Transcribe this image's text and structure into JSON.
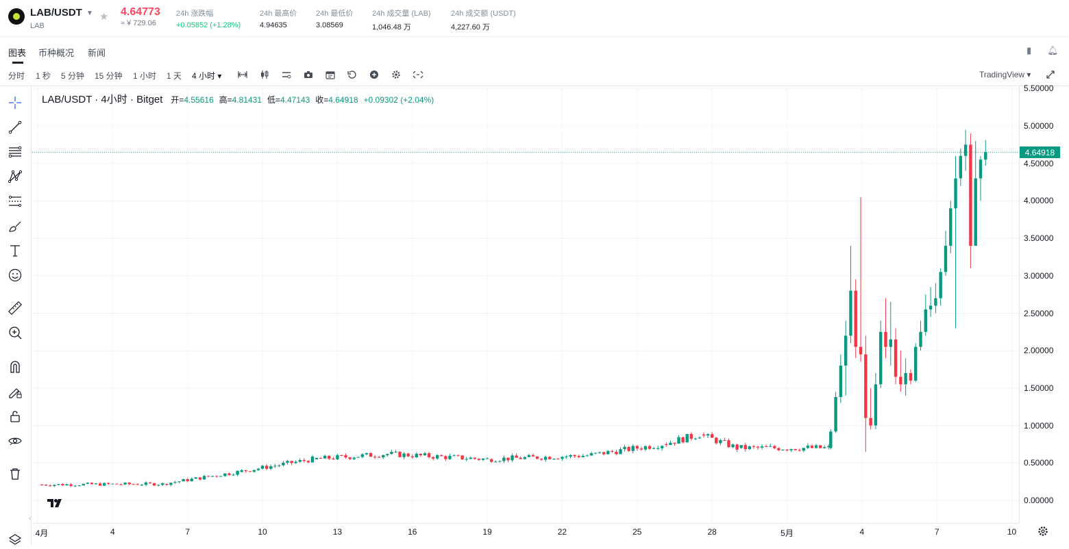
{
  "header": {
    "pair": "LAB/USDT",
    "base": "LAB",
    "price": "4.64773",
    "price_cny": "≈ ¥ 729.06",
    "stats": [
      {
        "label": "24h 涨跌幅",
        "value": "+0.05852 (+1.28%)",
        "up": true
      },
      {
        "label": "24h 最高价",
        "value": "4.94635"
      },
      {
        "label": "24h 最低价",
        "value": "3.08569"
      },
      {
        "label": "24h 成交量 (LAB)",
        "value": "1,046.48 万"
      },
      {
        "label": "24h 成交额 (USDT)",
        "value": "4,227.60 万"
      }
    ]
  },
  "tabs": [
    {
      "label": "图表",
      "active": true
    },
    {
      "label": "币种概况"
    },
    {
      "label": "新闻"
    }
  ],
  "toolbar": {
    "timeframes": [
      "分时",
      "1 秒",
      "5 分钟",
      "15 分钟",
      "1 小时",
      "1 天",
      "4 小时 ▾"
    ],
    "active_timeframe": "4 小时 ▾",
    "tradingview_label": "TradingView ▾",
    "icons": [
      "indicators-icon",
      "candle-type-icon",
      "compare-icon",
      "screenshot-icon",
      "calendar-icon",
      "replay-icon",
      "add-icon",
      "settings-icon",
      "fullscreen-icon"
    ]
  },
  "left_tools": [
    "crosshair-icon",
    "trendline-icon",
    "fib-lines-icon",
    "pattern-icon",
    "forecast-icon",
    "brush-icon",
    "text-icon",
    "emoji-icon",
    "ruler-icon",
    "zoom-in-icon",
    "magnet-icon",
    "lock-drawing-icon",
    "lock-icon",
    "eye-icon",
    "trash-icon"
  ],
  "legend": {
    "title": "LAB/USDT · 4小时 · Bitget",
    "open_label": "开=",
    "open": "4.55616",
    "high_label": "高=",
    "high": "4.81431",
    "low_label": "低=",
    "low": "4.47143",
    "close_label": "收=",
    "close": "4.64918",
    "change": "+0.09302 (+2.04%)"
  },
  "chart_data": {
    "type": "candlestick",
    "price_ticks": [
      "5.50000",
      "5.00000",
      "4.50000",
      "4.00000",
      "3.50000",
      "3.00000",
      "2.50000",
      "2.00000",
      "1.50000",
      "1.00000",
      "0.50000",
      "0.00000"
    ],
    "ylim": [
      -0.3,
      5.5
    ],
    "last_price": "4.64918",
    "time_ticks": [
      "4月",
      "4",
      "7",
      "10",
      "13",
      "16",
      "19",
      "22",
      "25",
      "28",
      "5月",
      "4",
      "7",
      "10"
    ],
    "up_color": "#089981",
    "down_color": "#f23645",
    "segments": [
      {
        "from_day": 0,
        "to_day": 5.0,
        "start": 0.21,
        "end": 0.22
      },
      {
        "from_day": 5.0,
        "to_day": 8.0,
        "start": 0.22,
        "end": 0.38
      },
      {
        "from_day": 8.0,
        "to_day": 11.0,
        "start": 0.38,
        "end": 0.55
      },
      {
        "from_day": 11.0,
        "to_day": 14.0,
        "start": 0.55,
        "end": 0.62
      },
      {
        "from_day": 14.0,
        "to_day": 18.0,
        "start": 0.62,
        "end": 0.55
      },
      {
        "from_day": 18.0,
        "to_day": 22.0,
        "start": 0.55,
        "end": 0.6
      },
      {
        "from_day": 22.0,
        "to_day": 25.0,
        "start": 0.6,
        "end": 0.75
      },
      {
        "from_day": 25.0,
        "to_day": 26.5,
        "start": 0.75,
        "end": 0.88
      },
      {
        "from_day": 26.5,
        "to_day": 28.0,
        "start": 0.88,
        "end": 0.7
      },
      {
        "from_day": 28.0,
        "to_day": 31.7,
        "start": 0.7,
        "end": 0.7
      }
    ],
    "spike_candles": [
      {
        "day": 31.75,
        "o": 0.7,
        "h": 0.95,
        "l": 0.68,
        "c": 0.92
      },
      {
        "day": 31.95,
        "o": 0.92,
        "h": 1.45,
        "l": 0.9,
        "c": 1.38
      },
      {
        "day": 32.15,
        "o": 1.38,
        "h": 1.95,
        "l": 1.3,
        "c": 1.8
      },
      {
        "day": 32.35,
        "o": 1.8,
        "h": 2.4,
        "l": 1.4,
        "c": 2.2
      },
      {
        "day": 32.55,
        "o": 2.2,
        "h": 3.4,
        "l": 2.1,
        "c": 2.8
      },
      {
        "day": 32.75,
        "o": 2.8,
        "h": 2.95,
        "l": 1.9,
        "c": 2.05
      },
      {
        "day": 32.95,
        "o": 2.05,
        "h": 4.05,
        "l": 1.85,
        "c": 1.95
      },
      {
        "day": 33.15,
        "o": 1.95,
        "h": 2.2,
        "l": 0.65,
        "c": 1.1
      },
      {
        "day": 33.35,
        "o": 1.1,
        "h": 1.5,
        "l": 0.95,
        "c": 1.0
      },
      {
        "day": 33.55,
        "o": 1.0,
        "h": 1.7,
        "l": 0.95,
        "c": 1.55
      },
      {
        "day": 33.75,
        "o": 1.55,
        "h": 2.4,
        "l": 1.5,
        "c": 2.25
      },
      {
        "day": 33.95,
        "o": 2.25,
        "h": 2.7,
        "l": 1.9,
        "c": 2.05
      },
      {
        "day": 34.15,
        "o": 2.05,
        "h": 2.65,
        "l": 1.8,
        "c": 2.15
      },
      {
        "day": 34.35,
        "o": 2.15,
        "h": 2.3,
        "l": 1.55,
        "c": 1.65
      },
      {
        "day": 34.55,
        "o": 1.65,
        "h": 2.0,
        "l": 1.45,
        "c": 1.55
      },
      {
        "day": 34.75,
        "o": 1.55,
        "h": 1.9,
        "l": 1.4,
        "c": 1.7
      },
      {
        "day": 34.95,
        "o": 1.7,
        "h": 1.75,
        "l": 1.55,
        "c": 1.6
      },
      {
        "day": 35.15,
        "o": 1.6,
        "h": 2.1,
        "l": 1.58,
        "c": 2.05
      },
      {
        "day": 35.35,
        "o": 2.05,
        "h": 2.4,
        "l": 2.0,
        "c": 2.25
      },
      {
        "day": 35.55,
        "o": 2.25,
        "h": 2.75,
        "l": 2.2,
        "c": 2.55
      },
      {
        "day": 35.75,
        "o": 2.55,
        "h": 2.85,
        "l": 2.45,
        "c": 2.6
      },
      {
        "day": 35.95,
        "o": 2.6,
        "h": 2.9,
        "l": 2.5,
        "c": 2.7
      },
      {
        "day": 36.15,
        "o": 2.7,
        "h": 3.1,
        "l": 2.6,
        "c": 3.05
      },
      {
        "day": 36.35,
        "o": 3.05,
        "h": 3.6,
        "l": 3.0,
        "c": 3.4
      },
      {
        "day": 36.55,
        "o": 3.4,
        "h": 4.0,
        "l": 3.3,
        "c": 3.9
      },
      {
        "day": 36.75,
        "o": 3.9,
        "h": 4.6,
        "l": 2.3,
        "c": 4.3
      },
      {
        "day": 36.95,
        "o": 4.3,
        "h": 4.7,
        "l": 4.2,
        "c": 4.6
      },
      {
        "day": 37.15,
        "o": 4.6,
        "h": 4.95,
        "l": 4.4,
        "c": 4.75
      },
      {
        "day": 37.35,
        "o": 4.75,
        "h": 4.9,
        "l": 3.1,
        "c": 3.4
      },
      {
        "day": 37.55,
        "o": 3.4,
        "h": 4.8,
        "l": 3.4,
        "c": 4.3
      },
      {
        "day": 37.75,
        "o": 4.3,
        "h": 4.6,
        "l": 4.0,
        "c": 4.55
      },
      {
        "day": 37.95,
        "o": 4.55,
        "h": 4.81,
        "l": 4.47,
        "c": 4.65
      }
    ]
  }
}
